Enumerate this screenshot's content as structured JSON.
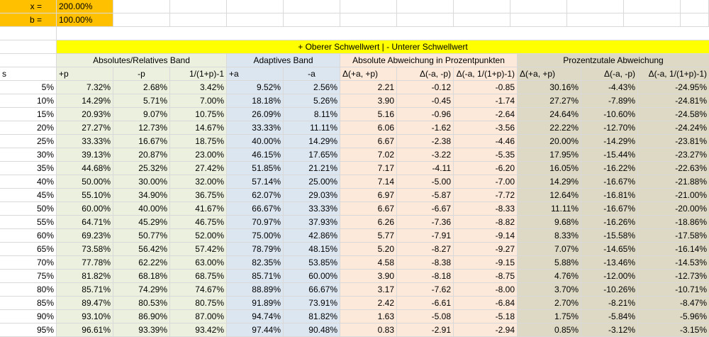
{
  "params": {
    "x_label": "x =",
    "x_value": "200.00%",
    "b_label": "b =",
    "b_value": "100.00%"
  },
  "banner": "+ Oberer Schwellwert | - Unterer Schwellwert",
  "groups": {
    "absrel": "Absolutes/Relatives Band",
    "adaptive": "Adaptives Band",
    "absdev": "Absolute Abweichung in Prozentpunkten",
    "pctdev": "Prozentzutale Abweichung"
  },
  "headers": [
    "s",
    "+p",
    "-p",
    "1/(1+p)-1",
    "+a",
    "-a",
    "Δ(+a, +p)",
    "Δ(-a, -p)",
    "Δ(-a, 1/(1+p)-1)",
    "Δ(+a, +p)",
    "Δ(-a, -p)",
    "Δ(-a, 1/(1+p)-1)"
  ],
  "rows": [
    [
      "5%",
      "7.32%",
      "2.68%",
      "3.42%",
      "9.52%",
      "2.56%",
      "2.21",
      "-0.12",
      "-0.85",
      "30.16%",
      "-4.43%",
      "-24.95%"
    ],
    [
      "10%",
      "14.29%",
      "5.71%",
      "7.00%",
      "18.18%",
      "5.26%",
      "3.90",
      "-0.45",
      "-1.74",
      "27.27%",
      "-7.89%",
      "-24.81%"
    ],
    [
      "15%",
      "20.93%",
      "9.07%",
      "10.75%",
      "26.09%",
      "8.11%",
      "5.16",
      "-0.96",
      "-2.64",
      "24.64%",
      "-10.60%",
      "-24.58%"
    ],
    [
      "20%",
      "27.27%",
      "12.73%",
      "14.67%",
      "33.33%",
      "11.11%",
      "6.06",
      "-1.62",
      "-3.56",
      "22.22%",
      "-12.70%",
      "-24.24%"
    ],
    [
      "25%",
      "33.33%",
      "16.67%",
      "18.75%",
      "40.00%",
      "14.29%",
      "6.67",
      "-2.38",
      "-4.46",
      "20.00%",
      "-14.29%",
      "-23.81%"
    ],
    [
      "30%",
      "39.13%",
      "20.87%",
      "23.00%",
      "46.15%",
      "17.65%",
      "7.02",
      "-3.22",
      "-5.35",
      "17.95%",
      "-15.44%",
      "-23.27%"
    ],
    [
      "35%",
      "44.68%",
      "25.32%",
      "27.42%",
      "51.85%",
      "21.21%",
      "7.17",
      "-4.11",
      "-6.20",
      "16.05%",
      "-16.22%",
      "-22.63%"
    ],
    [
      "40%",
      "50.00%",
      "30.00%",
      "32.00%",
      "57.14%",
      "25.00%",
      "7.14",
      "-5.00",
      "-7.00",
      "14.29%",
      "-16.67%",
      "-21.88%"
    ],
    [
      "45%",
      "55.10%",
      "34.90%",
      "36.75%",
      "62.07%",
      "29.03%",
      "6.97",
      "-5.87",
      "-7.72",
      "12.64%",
      "-16.81%",
      "-21.00%"
    ],
    [
      "50%",
      "60.00%",
      "40.00%",
      "41.67%",
      "66.67%",
      "33.33%",
      "6.67",
      "-6.67",
      "-8.33",
      "11.11%",
      "-16.67%",
      "-20.00%"
    ],
    [
      "55%",
      "64.71%",
      "45.29%",
      "46.75%",
      "70.97%",
      "37.93%",
      "6.26",
      "-7.36",
      "-8.82",
      "9.68%",
      "-16.26%",
      "-18.86%"
    ],
    [
      "60%",
      "69.23%",
      "50.77%",
      "52.00%",
      "75.00%",
      "42.86%",
      "5.77",
      "-7.91",
      "-9.14",
      "8.33%",
      "-15.58%",
      "-17.58%"
    ],
    [
      "65%",
      "73.58%",
      "56.42%",
      "57.42%",
      "78.79%",
      "48.15%",
      "5.20",
      "-8.27",
      "-9.27",
      "7.07%",
      "-14.65%",
      "-16.14%"
    ],
    [
      "70%",
      "77.78%",
      "62.22%",
      "63.00%",
      "82.35%",
      "53.85%",
      "4.58",
      "-8.38",
      "-9.15",
      "5.88%",
      "-13.46%",
      "-14.53%"
    ],
    [
      "75%",
      "81.82%",
      "68.18%",
      "68.75%",
      "85.71%",
      "60.00%",
      "3.90",
      "-8.18",
      "-8.75",
      "4.76%",
      "-12.00%",
      "-12.73%"
    ],
    [
      "80%",
      "85.71%",
      "74.29%",
      "74.67%",
      "88.89%",
      "66.67%",
      "3.17",
      "-7.62",
      "-8.00",
      "3.70%",
      "-10.26%",
      "-10.71%"
    ],
    [
      "85%",
      "89.47%",
      "80.53%",
      "80.75%",
      "91.89%",
      "73.91%",
      "2.42",
      "-6.61",
      "-6.84",
      "2.70%",
      "-8.21%",
      "-8.47%"
    ],
    [
      "90%",
      "93.10%",
      "86.90%",
      "87.00%",
      "94.74%",
      "81.82%",
      "1.63",
      "-5.08",
      "-5.18",
      "1.75%",
      "-5.84%",
      "-5.96%"
    ],
    [
      "95%",
      "96.61%",
      "93.39%",
      "93.42%",
      "97.44%",
      "90.48%",
      "0.83",
      "-2.91",
      "-2.94",
      "0.85%",
      "-3.12%",
      "-3.15%"
    ]
  ],
  "colors": {
    "params": "#ffc000",
    "banner": "#ffff00",
    "absrel": "#ebf1de",
    "adaptive": "#dce6f1",
    "absdev": "#fde9d9",
    "pctdev": "#ddd9c4"
  }
}
